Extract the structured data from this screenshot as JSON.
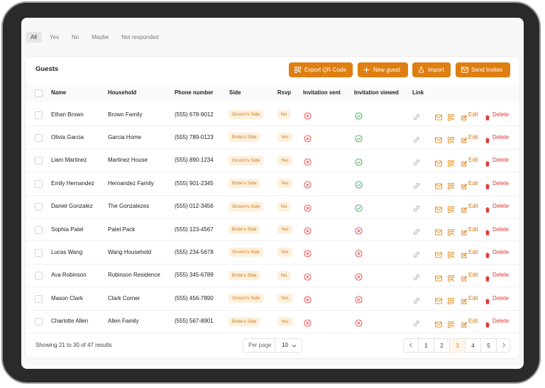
{
  "tabs": [
    "All",
    "Yes",
    "No",
    "Maybe",
    "Not responded"
  ],
  "active_tab": 0,
  "card_title": "Guests",
  "buttons": [
    "Export QR Code",
    "New guest",
    "Import",
    "Send Invites"
  ],
  "table": {
    "headers": [
      "Name",
      "Household",
      "Phone number",
      "Side",
      "Rsvp",
      "Invitation sent",
      "Invitation viewed",
      "Link"
    ],
    "rows": [
      {
        "name": "Ethan Brown",
        "household": "Brown Family",
        "phone": "(555) 678-9012",
        "side": "Groom's Side",
        "rsvp": "No",
        "sent": false,
        "viewed": true
      },
      {
        "name": "Olivia Garcia",
        "household": "Garcia Home",
        "phone": "(555) 789-0123",
        "side": "Bride's Side",
        "rsvp": "Yes",
        "sent": false,
        "viewed": true
      },
      {
        "name": "Liam Martinez",
        "household": "Martinez House",
        "phone": "(555) 890-1234",
        "side": "Groom's Side",
        "rsvp": "Yes",
        "sent": false,
        "viewed": true
      },
      {
        "name": "Emily Hernandez",
        "household": "Hernandez Family",
        "phone": "(555) 901-2345",
        "side": "Bride's Side",
        "rsvp": "Yes",
        "sent": false,
        "viewed": true
      },
      {
        "name": "Daniel Gonzalez",
        "household": "The Gonzalezes",
        "phone": "(555) 012-3456",
        "side": "Groom's Side",
        "rsvp": "No",
        "sent": false,
        "viewed": true
      },
      {
        "name": "Sophia Patel",
        "household": "Patel Pack",
        "phone": "(555) 123-4567",
        "side": "Bride's Side",
        "rsvp": "Yes",
        "sent": false,
        "viewed": false
      },
      {
        "name": "Lucas Wang",
        "household": "Wang Household",
        "phone": "(555) 234-5678",
        "side": "Groom's Side",
        "rsvp": "Yes",
        "sent": false,
        "viewed": false
      },
      {
        "name": "Ava Robinson",
        "household": "Robinson Residence",
        "phone": "(555) 345-6789",
        "side": "Bride's Side",
        "rsvp": "No",
        "sent": false,
        "viewed": false
      },
      {
        "name": "Mason Clark",
        "household": "Clark Corner",
        "phone": "(555) 456-7890",
        "side": "Groom's Side",
        "rsvp": "Yes",
        "sent": false,
        "viewed": false
      },
      {
        "name": "Charlotte Allen",
        "household": "Allen Family",
        "phone": "(555) 567-8901",
        "side": "Bride's Side",
        "rsvp": "Yes",
        "sent": false,
        "viewed": false
      }
    ]
  },
  "row_actions": [
    "Edit",
    "Delete"
  ],
  "footer": {
    "summary": "Showing 21 to 30 of 47 results",
    "per_page_label": "Per page",
    "per_page": "10",
    "pages": [
      "1",
      "2",
      "3",
      "4",
      "5"
    ],
    "current_page": 2
  }
}
